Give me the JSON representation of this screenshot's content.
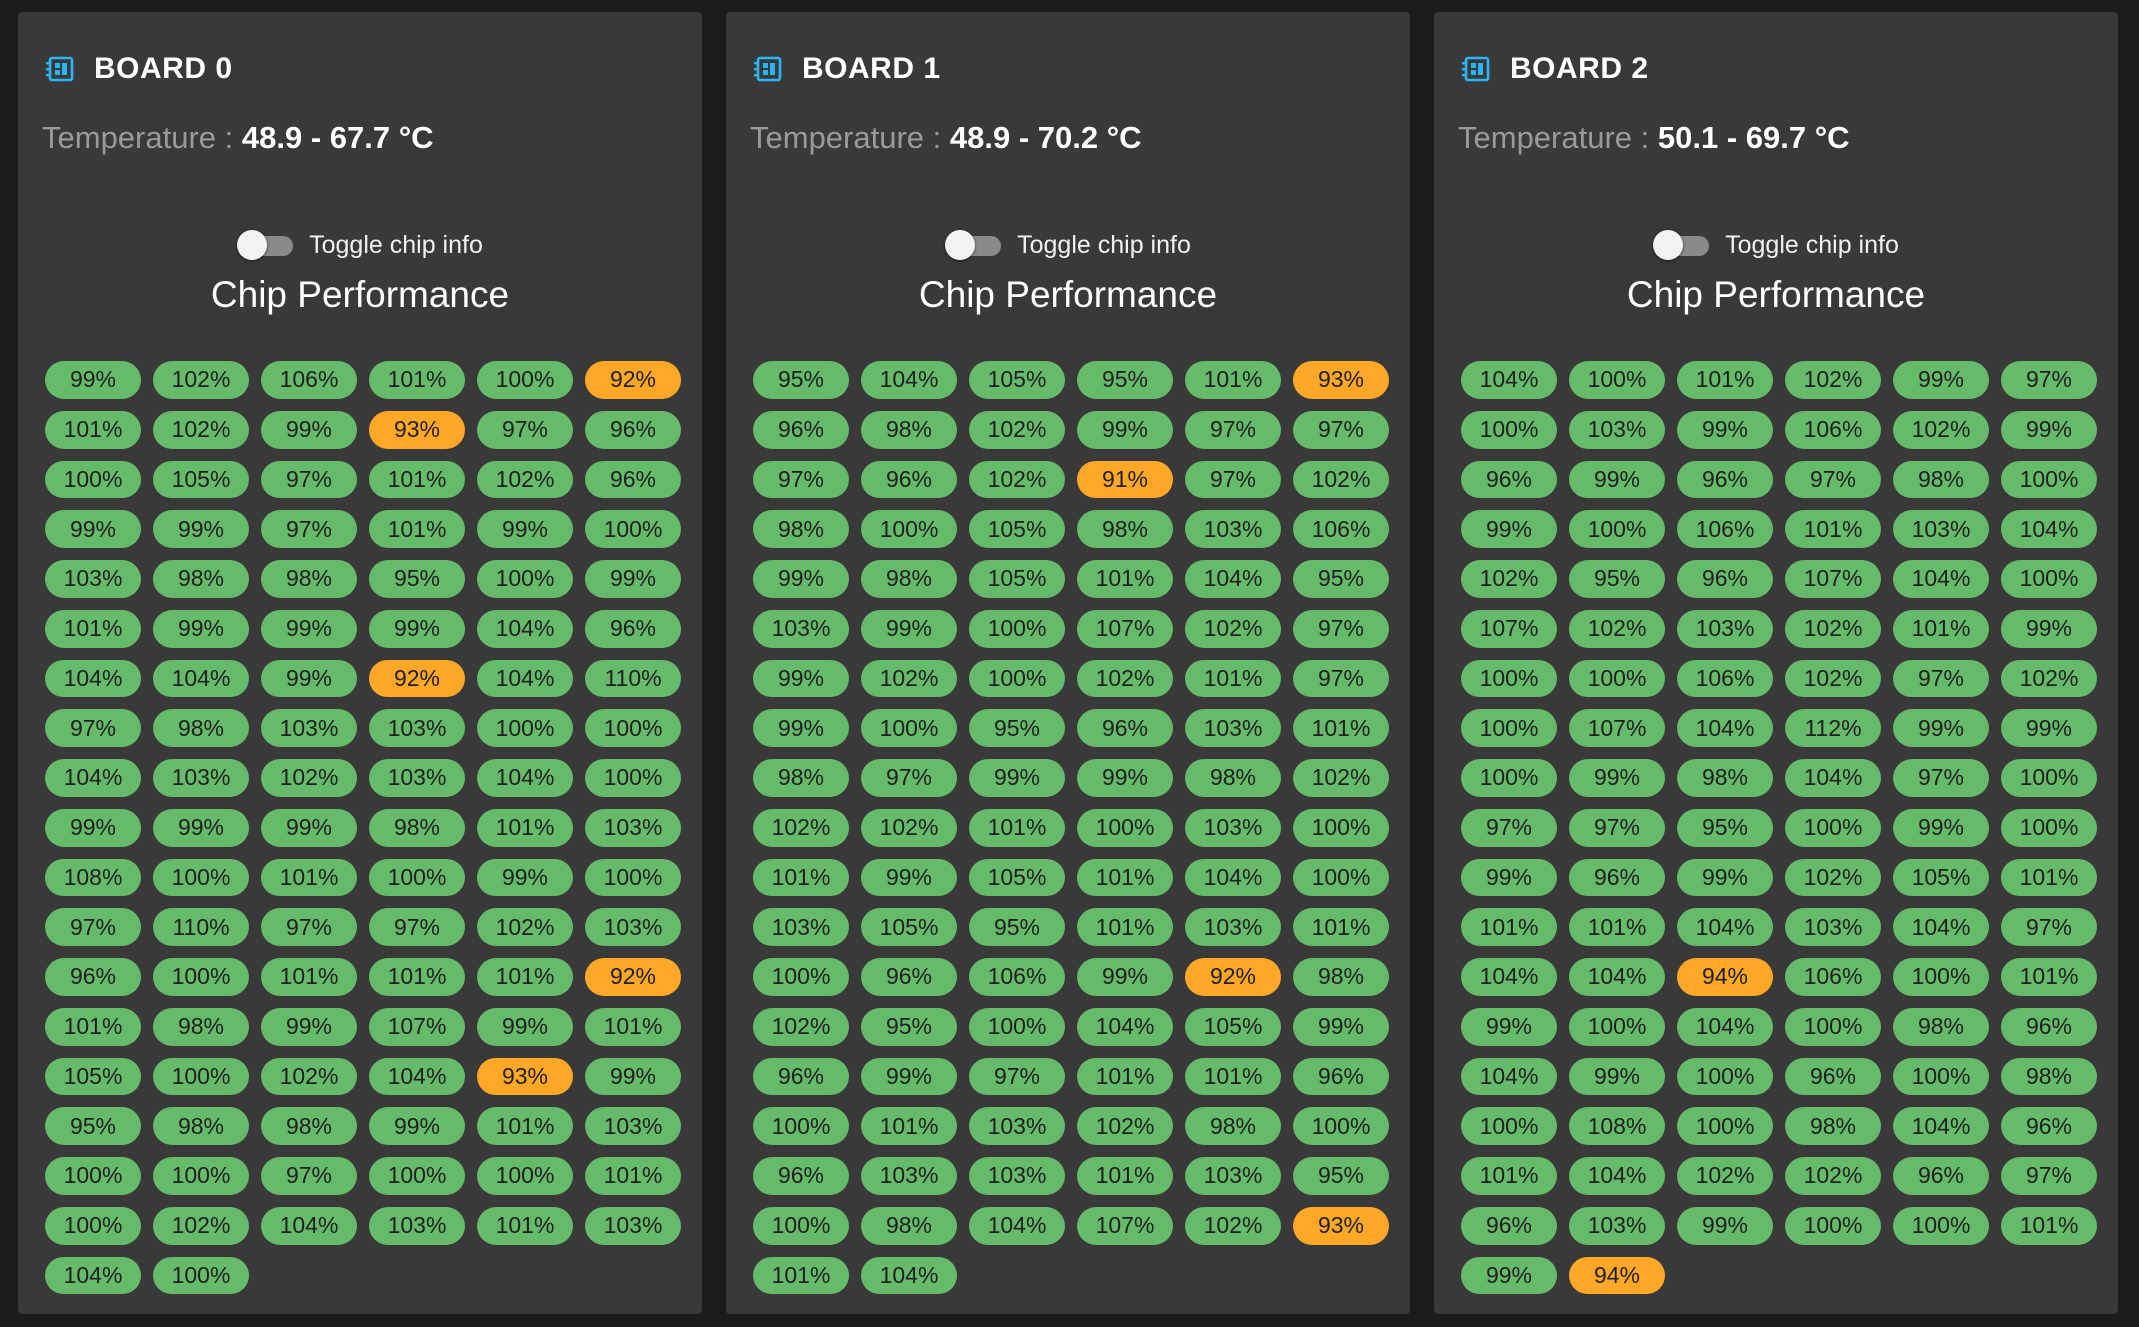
{
  "colors": {
    "background": "#1b1b1b",
    "card": "#393939",
    "chip_good": "#66bb6a",
    "chip_warn": "#ffa726",
    "icon": "#29b6f6"
  },
  "warn_threshold_percent": 95,
  "icons": {
    "board": "developer-board-icon"
  },
  "labels": {
    "temperature": "Temperature : ",
    "toggle": "Toggle chip info",
    "chip_performance": "Chip Performance"
  },
  "boards": [
    {
      "title": "BOARD 0",
      "temperature": "48.9 - 67.7 °C",
      "chips": [
        "99%",
        "102%",
        "106%",
        "101%",
        "100%",
        "92%",
        "101%",
        "102%",
        "99%",
        "93%",
        "97%",
        "96%",
        "100%",
        "105%",
        "97%",
        "101%",
        "102%",
        "96%",
        "99%",
        "99%",
        "97%",
        "101%",
        "99%",
        "100%",
        "103%",
        "98%",
        "98%",
        "95%",
        "100%",
        "99%",
        "101%",
        "99%",
        "99%",
        "99%",
        "104%",
        "96%",
        "104%",
        "104%",
        "99%",
        "92%",
        "104%",
        "110%",
        "97%",
        "98%",
        "103%",
        "103%",
        "100%",
        "100%",
        "104%",
        "103%",
        "102%",
        "103%",
        "104%",
        "100%",
        "99%",
        "99%",
        "99%",
        "98%",
        "101%",
        "103%",
        "108%",
        "100%",
        "101%",
        "100%",
        "99%",
        "100%",
        "97%",
        "110%",
        "97%",
        "97%",
        "102%",
        "103%",
        "96%",
        "100%",
        "101%",
        "101%",
        "101%",
        "92%",
        "101%",
        "98%",
        "99%",
        "107%",
        "99%",
        "101%",
        "105%",
        "100%",
        "102%",
        "104%",
        "93%",
        "99%",
        "95%",
        "98%",
        "98%",
        "99%",
        "101%",
        "103%",
        "100%",
        "100%",
        "97%",
        "100%",
        "100%",
        "101%",
        "100%",
        "102%",
        "104%",
        "103%",
        "101%",
        "103%",
        "104%",
        "100%"
      ]
    },
    {
      "title": "BOARD 1",
      "temperature": "48.9 - 70.2 °C",
      "chips": [
        "95%",
        "104%",
        "105%",
        "95%",
        "101%",
        "93%",
        "96%",
        "98%",
        "102%",
        "99%",
        "97%",
        "97%",
        "97%",
        "96%",
        "102%",
        "91%",
        "97%",
        "102%",
        "98%",
        "100%",
        "105%",
        "98%",
        "103%",
        "106%",
        "99%",
        "98%",
        "105%",
        "101%",
        "104%",
        "95%",
        "103%",
        "99%",
        "100%",
        "107%",
        "102%",
        "97%",
        "99%",
        "102%",
        "100%",
        "102%",
        "101%",
        "97%",
        "99%",
        "100%",
        "95%",
        "96%",
        "103%",
        "101%",
        "98%",
        "97%",
        "99%",
        "99%",
        "98%",
        "102%",
        "102%",
        "102%",
        "101%",
        "100%",
        "103%",
        "100%",
        "101%",
        "99%",
        "105%",
        "101%",
        "104%",
        "100%",
        "103%",
        "105%",
        "95%",
        "101%",
        "103%",
        "101%",
        "100%",
        "96%",
        "106%",
        "99%",
        "92%",
        "98%",
        "102%",
        "95%",
        "100%",
        "104%",
        "105%",
        "99%",
        "96%",
        "99%",
        "97%",
        "101%",
        "101%",
        "96%",
        "100%",
        "101%",
        "103%",
        "102%",
        "98%",
        "100%",
        "96%",
        "103%",
        "103%",
        "101%",
        "103%",
        "95%",
        "100%",
        "98%",
        "104%",
        "107%",
        "102%",
        "93%",
        "101%",
        "104%"
      ]
    },
    {
      "title": "BOARD 2",
      "temperature": "50.1 - 69.7 °C",
      "chips": [
        "104%",
        "100%",
        "101%",
        "102%",
        "99%",
        "97%",
        "100%",
        "103%",
        "99%",
        "106%",
        "102%",
        "99%",
        "96%",
        "99%",
        "96%",
        "97%",
        "98%",
        "100%",
        "99%",
        "100%",
        "106%",
        "101%",
        "103%",
        "104%",
        "102%",
        "95%",
        "96%",
        "107%",
        "104%",
        "100%",
        "107%",
        "102%",
        "103%",
        "102%",
        "101%",
        "99%",
        "100%",
        "100%",
        "106%",
        "102%",
        "97%",
        "102%",
        "100%",
        "107%",
        "104%",
        "112%",
        "99%",
        "99%",
        "100%",
        "99%",
        "98%",
        "104%",
        "97%",
        "100%",
        "97%",
        "97%",
        "95%",
        "100%",
        "99%",
        "100%",
        "99%",
        "96%",
        "99%",
        "102%",
        "105%",
        "101%",
        "101%",
        "101%",
        "104%",
        "103%",
        "104%",
        "97%",
        "104%",
        "104%",
        "94%",
        "106%",
        "100%",
        "101%",
        "99%",
        "100%",
        "104%",
        "100%",
        "98%",
        "96%",
        "104%",
        "99%",
        "100%",
        "96%",
        "100%",
        "98%",
        "100%",
        "108%",
        "100%",
        "98%",
        "104%",
        "96%",
        "101%",
        "104%",
        "102%",
        "102%",
        "96%",
        "97%",
        "96%",
        "103%",
        "99%",
        "100%",
        "100%",
        "101%",
        "99%",
        "94%"
      ]
    }
  ]
}
